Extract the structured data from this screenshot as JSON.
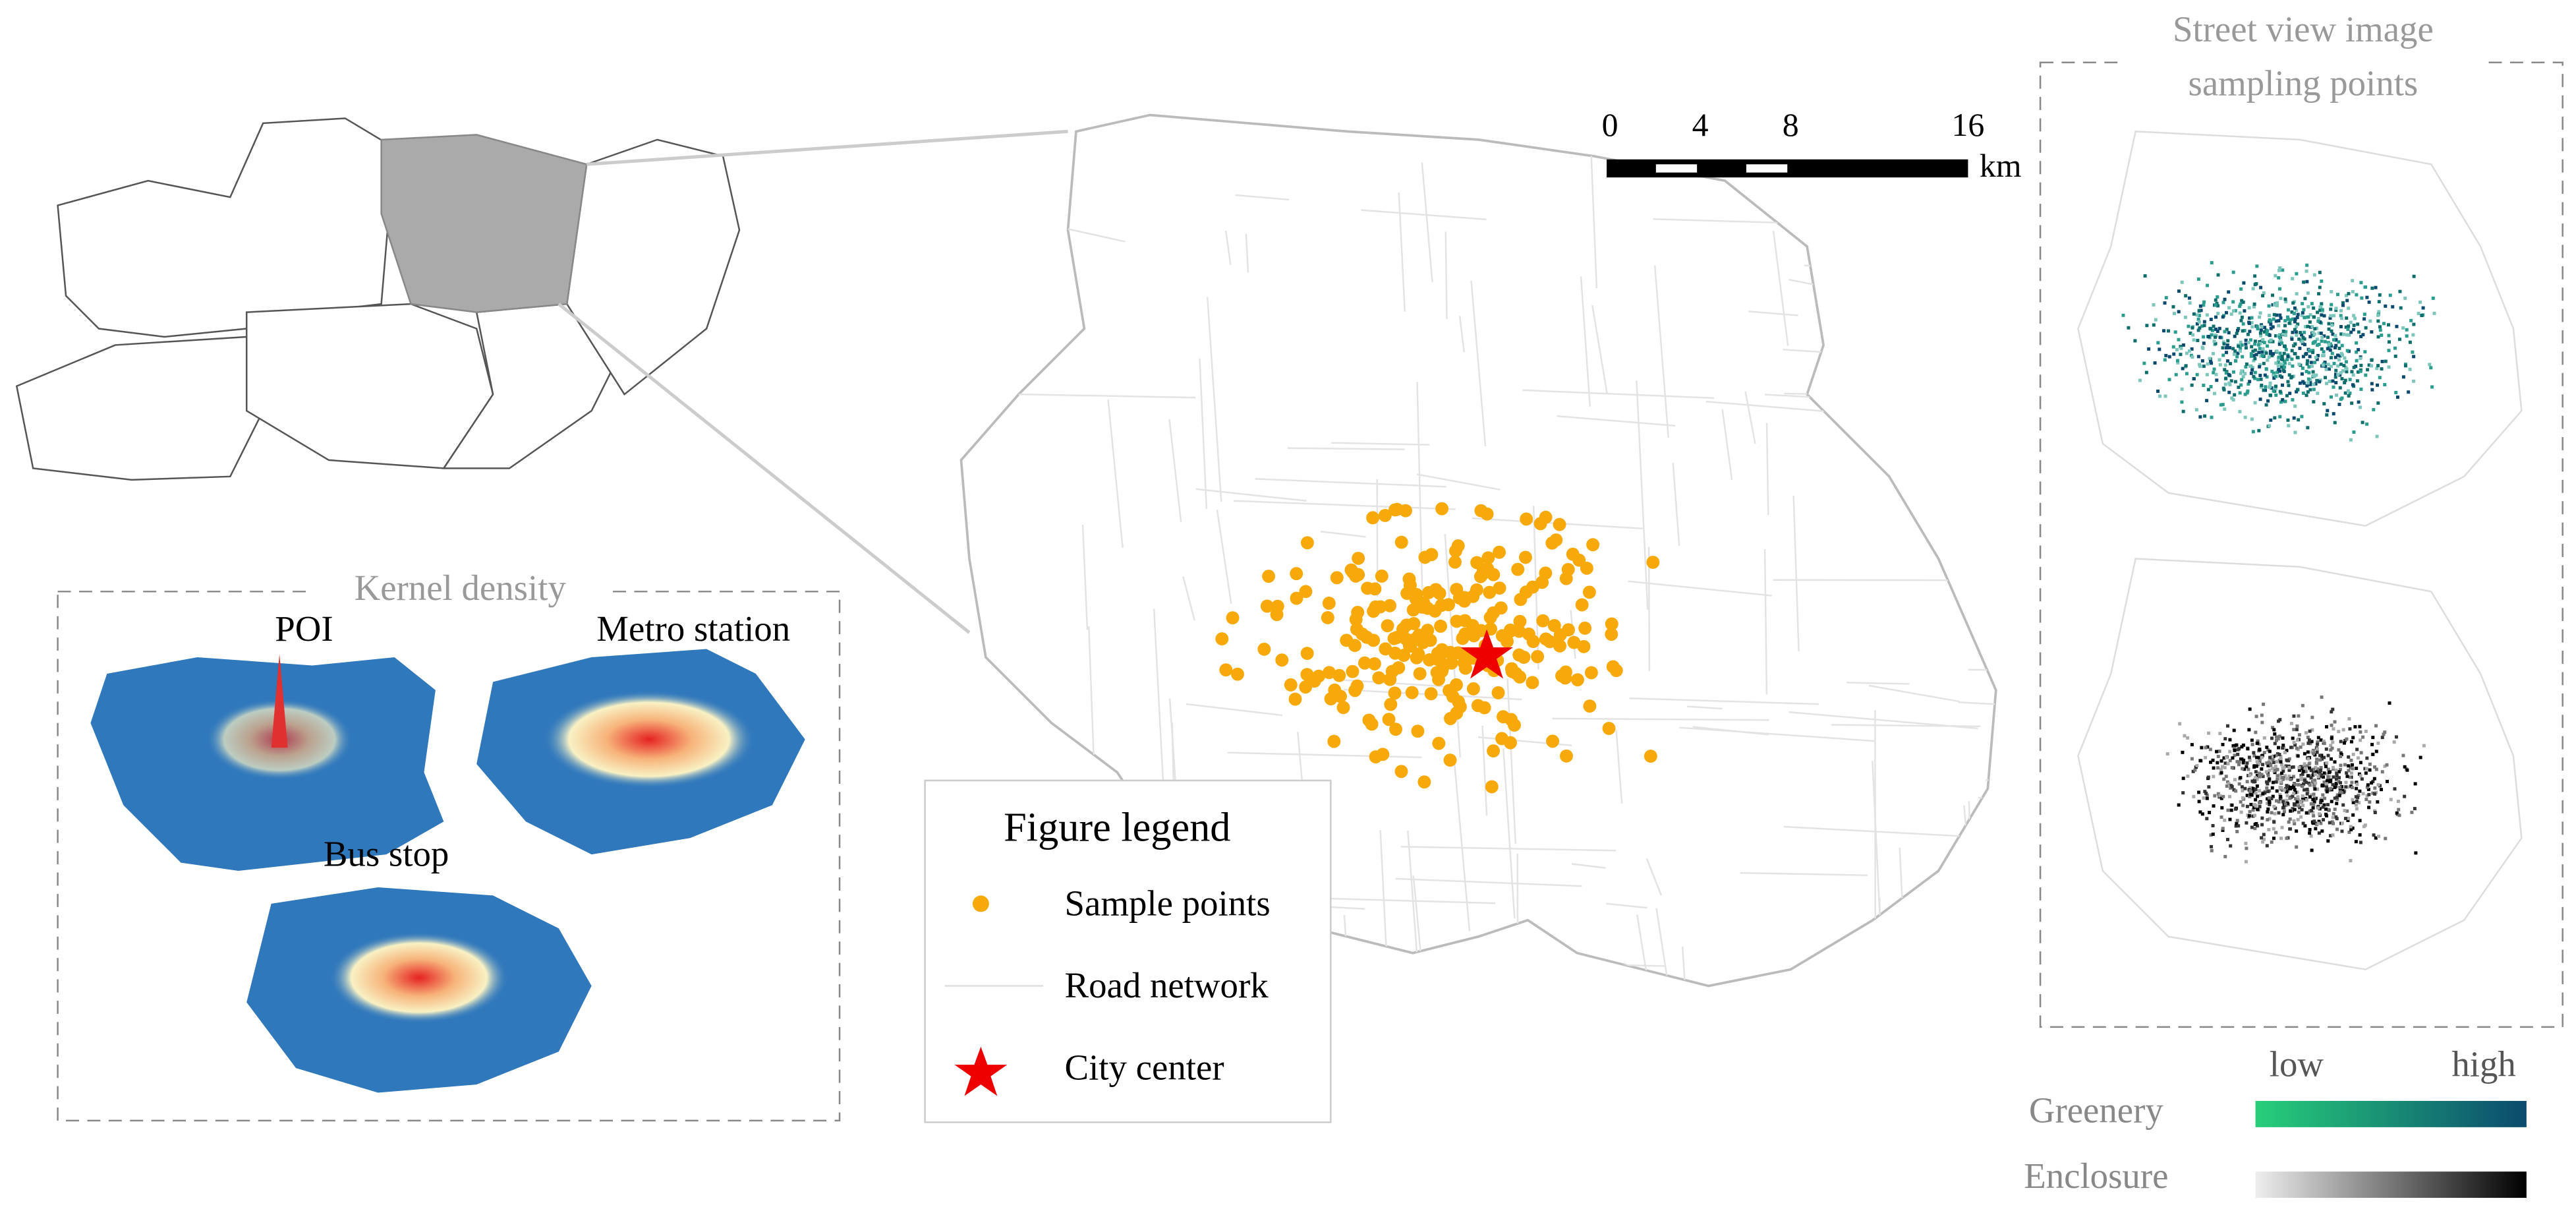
{
  "province_map": {},
  "kernel_density": {
    "title": "Kernel density",
    "labels": [
      "POI",
      "Metro station",
      "Bus stop"
    ]
  },
  "legend": {
    "title": "Figure legend",
    "items": [
      "Sample points",
      "Road network",
      "City center"
    ]
  },
  "scale_bar": {
    "ticks": [
      "0",
      "4",
      "8",
      "16"
    ],
    "unit": "km"
  },
  "street_view": {
    "title_lines": [
      "Street view image",
      "sampling points"
    ]
  },
  "color_scale": {
    "low": "low",
    "high": "high",
    "rows": [
      "Greenery",
      "Enclosure"
    ]
  }
}
